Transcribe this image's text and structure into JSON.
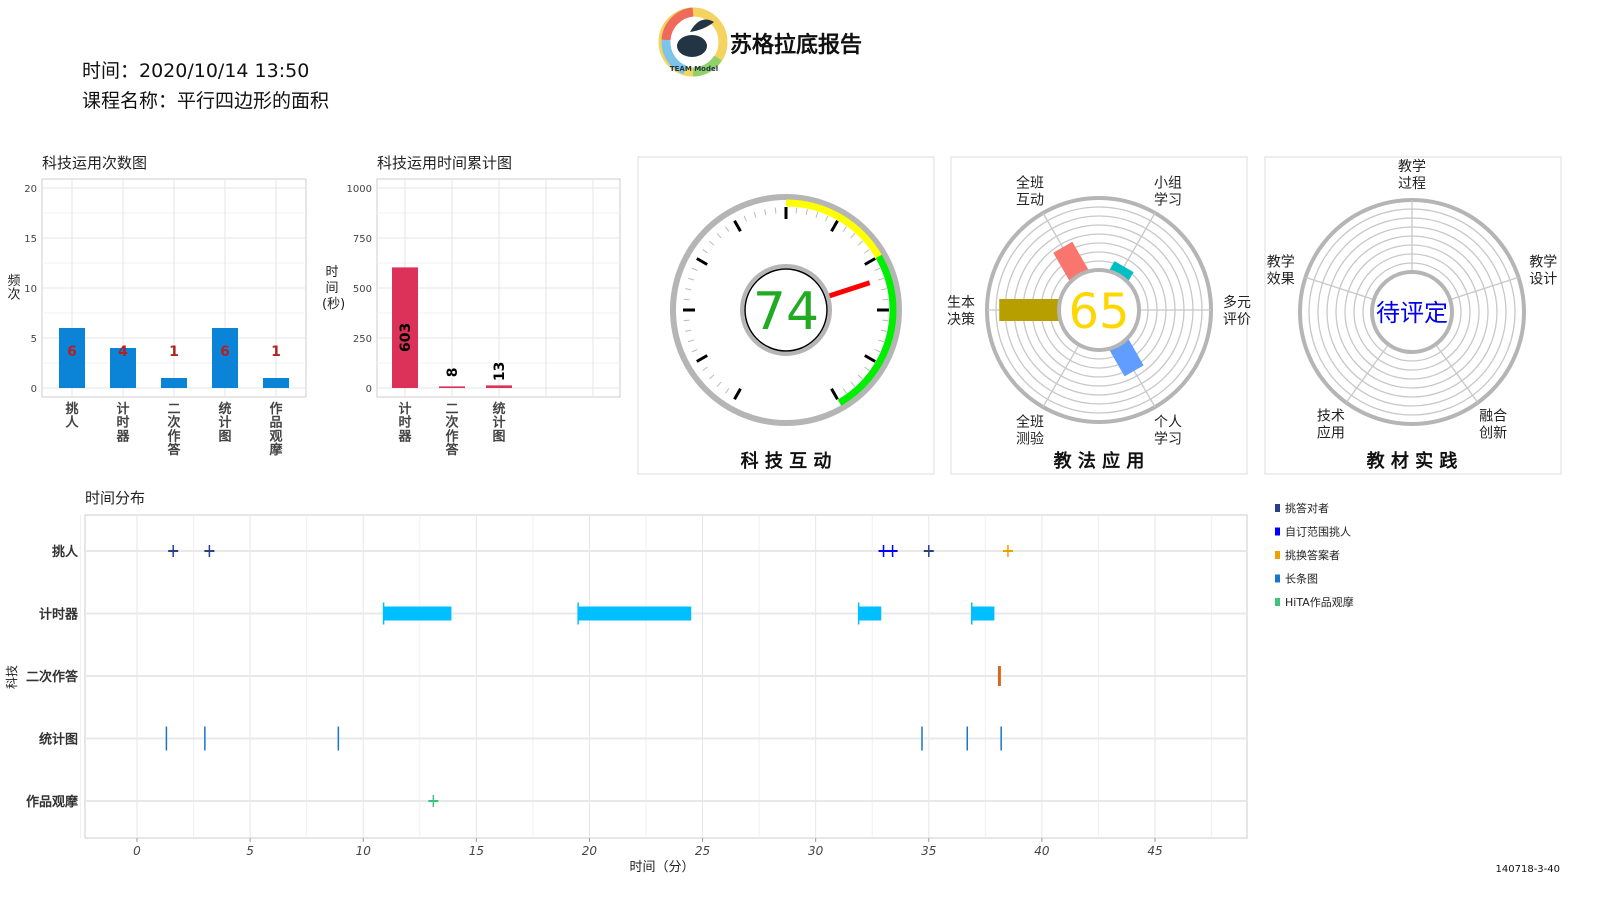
{
  "header": {
    "title": "苏格拉底报告",
    "logo_text": "TEAM Model",
    "time_label": "时间：2020/10/14 13:50",
    "course_label": "课程名称：平行四边形的面积"
  },
  "count_chart": {
    "title": "科技运用次数图",
    "type": "bar",
    "ylabel": "频次",
    "ylim": [
      0,
      20
    ],
    "yticks": [
      0,
      5,
      10,
      15,
      20
    ],
    "categories": [
      "挑人",
      "计时器",
      "二次作答",
      "统计图",
      "作品观摩"
    ],
    "values": [
      6,
      4,
      1,
      6,
      1
    ],
    "bar_color": "#0b84d8",
    "label_color": "#b22222"
  },
  "time_chart": {
    "title": "科技运用时间累计图",
    "type": "bar",
    "ylabel": "时间(秒)",
    "ylim": [
      0,
      1000
    ],
    "yticks": [
      0,
      250,
      500,
      750,
      1000
    ],
    "categories": [
      "计时器",
      "二次作答",
      "统计图"
    ],
    "values": [
      603,
      8,
      13
    ],
    "bar_color": "#dc3158"
  },
  "gauge": {
    "caption": "科 技 互 动",
    "value": 74,
    "min": 0,
    "max": 100,
    "bands": [
      {
        "from": 50,
        "to": 70,
        "color": "#ffff00"
      },
      {
        "from": 70,
        "to": 100,
        "color": "#00ee00"
      }
    ],
    "value_color": "#22aa22",
    "needle_color": "#ff0000"
  },
  "method_polar": {
    "caption": "教 法 应 用",
    "score": 65,
    "score_color": "#ffd700",
    "axes": [
      {
        "label": [
          "全班",
          "互动"
        ],
        "value": 0.45,
        "color": "#f8766d"
      },
      {
        "label": [
          "小组",
          "学习"
        ],
        "value": 0.14,
        "color": "#00bfc4"
      },
      {
        "label": [
          "多元",
          "评价"
        ],
        "value": 0,
        "color": "#00ba38"
      },
      {
        "label": [
          "个人",
          "学习"
        ],
        "value": 0.42,
        "color": "#619cff"
      },
      {
        "label": [
          "全班",
          "测验"
        ],
        "value": 0,
        "color": "#f564e3"
      },
      {
        "label": [
          "生本",
          "决策"
        ],
        "value": 0.83,
        "color": "#b79f00"
      }
    ]
  },
  "material_polar": {
    "caption": "教 材 实 践",
    "score": "待评定",
    "score_color": "#0000ee",
    "axes": [
      {
        "label": [
          "教学",
          "过程"
        ]
      },
      {
        "label": [
          "教学",
          "设计"
        ]
      },
      {
        "label": [
          "融合",
          "创新"
        ]
      },
      {
        "label": [
          "技术",
          "应用"
        ]
      },
      {
        "label": [
          "教学",
          "效果"
        ]
      }
    ]
  },
  "chart_data": {
    "type": "scatter",
    "title": "时间分布",
    "xlabel": "时间（分）",
    "ylabel": "科技",
    "xlim": [
      -2.3,
      49
    ],
    "xticks": [
      0,
      5,
      10,
      15,
      20,
      25,
      30,
      35,
      40,
      45
    ],
    "rows": [
      "挑人",
      "计时器",
      "二次作答",
      "统计图",
      "作品观摩"
    ],
    "legend": [
      {
        "name": "挑答对者",
        "color": "#2b3f86"
      },
      {
        "name": "自订范围挑人",
        "color": "#0000ff"
      },
      {
        "name": "挑换答案者",
        "color": "#f0a000"
      },
      {
        "name": "长条图",
        "color": "#1874cd"
      },
      {
        "name": "HiTA作品观摩",
        "color": "#3cc47c"
      }
    ],
    "points": [
      {
        "row": "挑人",
        "t": 1.6,
        "kind": "plus",
        "color": "#2b3f86"
      },
      {
        "row": "挑人",
        "t": 3.2,
        "kind": "plus",
        "color": "#2b3f86"
      },
      {
        "row": "挑人",
        "t": 33.0,
        "kind": "plus",
        "color": "#0000ff"
      },
      {
        "row": "挑人",
        "t": 33.4,
        "kind": "plus",
        "color": "#0000ff"
      },
      {
        "row": "挑人",
        "t": 35.0,
        "kind": "plus",
        "color": "#2b3f86"
      },
      {
        "row": "挑人",
        "t": 38.5,
        "kind": "plus",
        "color": "#f0a000"
      },
      {
        "row": "二次作答",
        "t": 38.1,
        "kind": "tick",
        "color": "#d2691e"
      },
      {
        "row": "统计图",
        "t": 1.3,
        "kind": "line",
        "color": "#1874cd"
      },
      {
        "row": "统计图",
        "t": 3.0,
        "kind": "line",
        "color": "#1874cd"
      },
      {
        "row": "统计图",
        "t": 8.9,
        "kind": "line",
        "color": "#1874cd"
      },
      {
        "row": "统计图",
        "t": 34.7,
        "kind": "line",
        "color": "#1874cd"
      },
      {
        "row": "统计图",
        "t": 36.7,
        "kind": "line",
        "color": "#1874cd"
      },
      {
        "row": "统计图",
        "t": 38.2,
        "kind": "line",
        "color": "#1874cd"
      },
      {
        "row": "作品观摩",
        "t": 13.1,
        "kind": "plus",
        "color": "#3cc47c"
      }
    ],
    "intervals": [
      {
        "row": "计时器",
        "start": 10.9,
        "end": 13.9,
        "color": "#00bfff"
      },
      {
        "row": "计时器",
        "start": 19.5,
        "end": 24.5,
        "color": "#00bfff"
      },
      {
        "row": "计时器",
        "start": 31.9,
        "end": 32.9,
        "color": "#00bfff"
      },
      {
        "row": "计时器",
        "start": 36.9,
        "end": 37.9,
        "color": "#00bfff"
      }
    ]
  },
  "footer": {
    "code": "140718-3-40"
  }
}
